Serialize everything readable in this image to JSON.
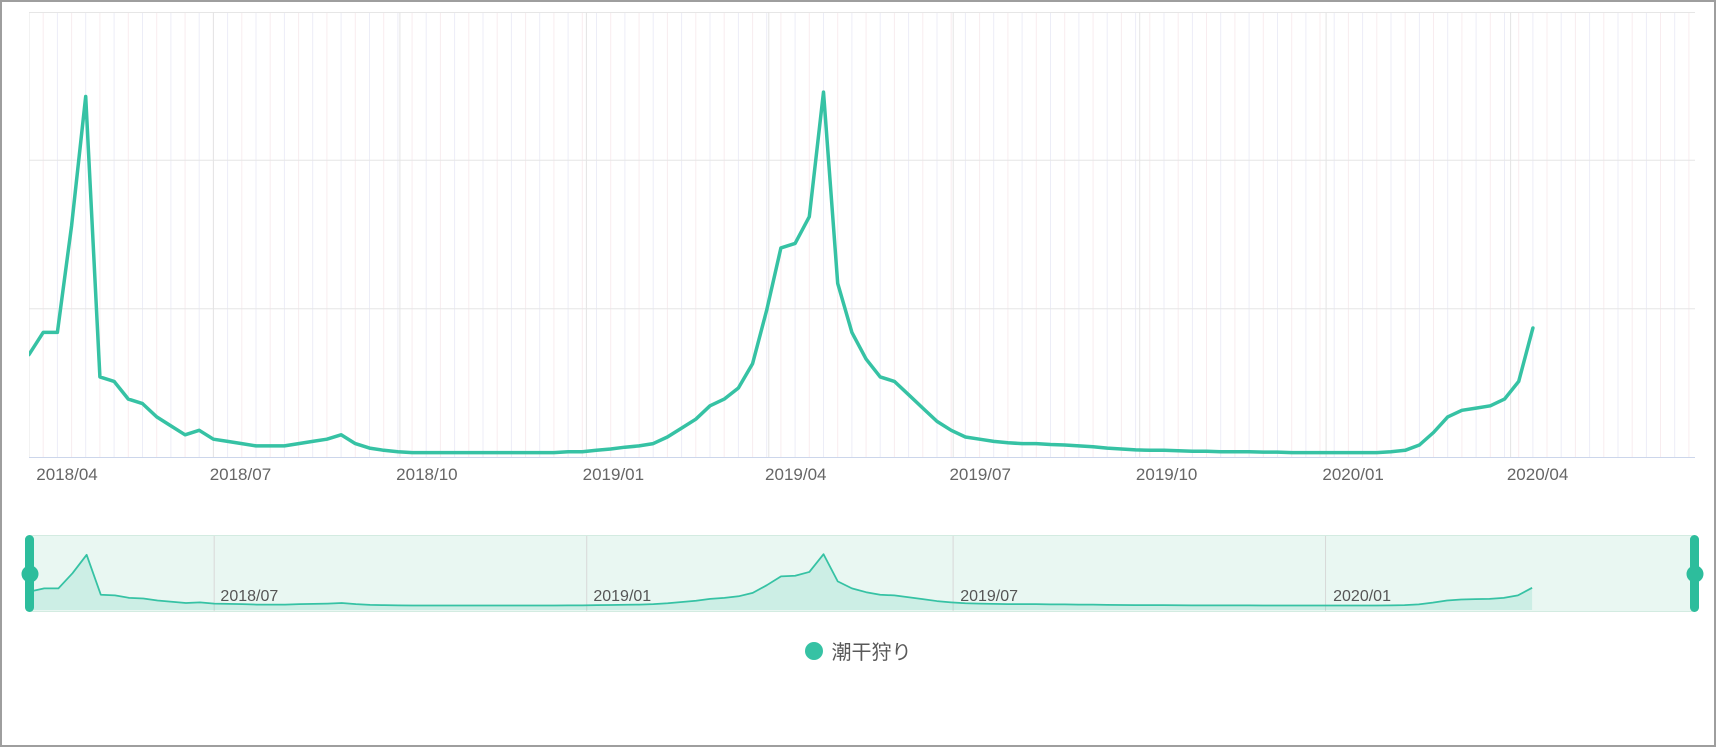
{
  "colors": {
    "line": "#36c2a4",
    "navigator_handle": "#2dbd9c",
    "navigator_bg": "#e9f7f2",
    "navigator_area_fill": "rgba(54,194,164,0.16)",
    "navigator_grid": "#d8d8d8",
    "grid_pink": "#f8ecef",
    "grid_blue": "#ecedf7",
    "grid_horizontal": "#e6e6e6",
    "quarter_grid": "#e4e4e4",
    "axis_bottom": "#ccd6eb",
    "tick_label": "#666666",
    "navigator_label": "#555555"
  },
  "legend": {
    "items": [
      {
        "label": "潮干狩り",
        "color": "#36c2a4"
      }
    ]
  },
  "chart_data": {
    "type": "line",
    "title": "",
    "xlabel": "",
    "ylabel": "",
    "ylim": [
      0,
      100
    ],
    "grid": true,
    "legend_position": "bottom-center",
    "x_start": "2018-04-01",
    "x_end": "2020-04-12",
    "x_step_days": 7,
    "x_axis_min": "2018-04-01",
    "x_axis_max": "2020-07-01",
    "x_tick_labels": [
      "2018/04",
      "2018/07",
      "2018/10",
      "2019/01",
      "2019/04",
      "2019/07",
      "2019/10",
      "2020/01",
      "2020/04"
    ],
    "navigator_tick_labels": [
      "2018/07",
      "2019/01",
      "2019/07",
      "2020/01"
    ],
    "series": [
      {
        "name": "潮干狩り",
        "color": "#36c2a4",
        "values": [
          23,
          28,
          28,
          52,
          81,
          18,
          17,
          13,
          12,
          9,
          7,
          5,
          6,
          4,
          3.5,
          3,
          2.5,
          2.5,
          2.5,
          3,
          3.5,
          4,
          5,
          3,
          2,
          1.5,
          1.2,
          1,
          1,
          1,
          1,
          1,
          1,
          1,
          1,
          1,
          1,
          1,
          1.2,
          1.2,
          1.5,
          1.8,
          2.2,
          2.5,
          3,
          4.5,
          6.5,
          8.5,
          11.5,
          13,
          15.5,
          21,
          33,
          47,
          48,
          54,
          82,
          39,
          28,
          22,
          18,
          17,
          14,
          11,
          8,
          6,
          4.5,
          4,
          3.5,
          3.2,
          3,
          3,
          2.8,
          2.7,
          2.5,
          2.3,
          2,
          1.8,
          1.6,
          1.5,
          1.5,
          1.4,
          1.3,
          1.3,
          1.2,
          1.2,
          1.2,
          1.1,
          1.1,
          1,
          1,
          1,
          1,
          1,
          1,
          1,
          1.2,
          1.5,
          2.7,
          5.5,
          9,
          10.5,
          11,
          11.5,
          13,
          17,
          29
        ]
      }
    ]
  }
}
